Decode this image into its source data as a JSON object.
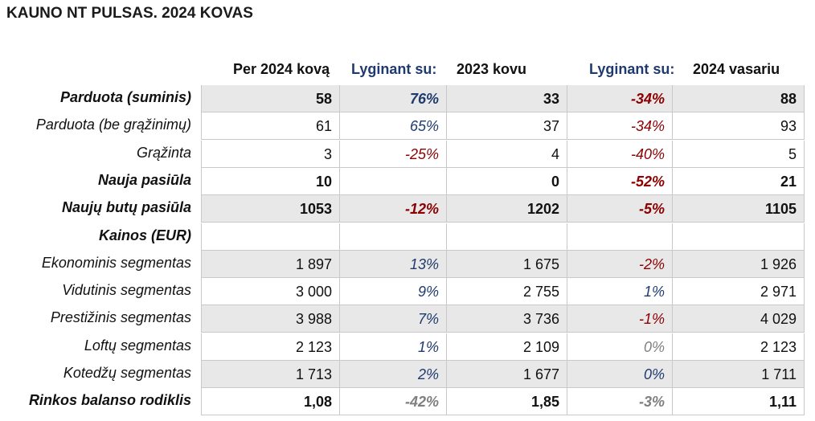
{
  "title": "KAUNO NT PULSAS. 2024 KOVAS",
  "headers": {
    "col1": "Per 2024 kovą",
    "cmp1": "Lyginant su:",
    "col3": "2023 kovu",
    "cmp2": "Lyginant su:",
    "col5": "2024 vasariu"
  },
  "colors": {
    "positive": "#1f3a6e",
    "negative": "#8b0000",
    "neutral": "#7f7f7f",
    "shade": "#e8e8e8"
  },
  "rows": [
    {
      "label": "Parduota (suminis)",
      "bold": true,
      "shade": true,
      "v1": "58",
      "p1": "76%",
      "p1s": "pos",
      "v3": "33",
      "p2": "-34%",
      "p2s": "neg",
      "v5": "88"
    },
    {
      "label": "Parduota (be grąžinimų)",
      "bold": false,
      "shade": false,
      "v1": "61",
      "p1": "65%",
      "p1s": "pos",
      "v3": "37",
      "p2": "-34%",
      "p2s": "neg",
      "v5": "93"
    },
    {
      "label": "Grąžinta",
      "bold": false,
      "shade": false,
      "v1": "3",
      "p1": "-25%",
      "p1s": "neg",
      "v3": "4",
      "p2": "-40%",
      "p2s": "neg",
      "v5": "5"
    },
    {
      "label": "Nauja pasiūla",
      "bold": true,
      "shade": false,
      "v1": "10",
      "p1": "",
      "p1s": "pos",
      "v3": "0",
      "p2": "-52%",
      "p2s": "neg",
      "v5": "21"
    },
    {
      "label": "Naujų butų pasiūla",
      "bold": true,
      "shade": true,
      "v1": "1053",
      "p1": "-12%",
      "p1s": "neg",
      "v3": "1202",
      "p2": "-5%",
      "p2s": "neg",
      "v5": "1105"
    },
    {
      "label": "Kainos (EUR)",
      "bold": true,
      "shade": false,
      "v1": "",
      "p1": "",
      "p1s": "pos",
      "v3": "",
      "p2": "",
      "p2s": "neg",
      "v5": ""
    },
    {
      "label": "Ekonominis segmentas",
      "bold": false,
      "shade": true,
      "v1": "1 897",
      "p1": "13%",
      "p1s": "pos",
      "v3": "1 675",
      "p2": "-2%",
      "p2s": "neg",
      "v5": "1 926"
    },
    {
      "label": "Vidutinis segmentas",
      "bold": false,
      "shade": false,
      "v1": "3 000",
      "p1": "9%",
      "p1s": "pos",
      "v3": "2 755",
      "p2": "1%",
      "p2s": "pos",
      "v5": "2 971"
    },
    {
      "label": "Prestižinis segmentas",
      "bold": false,
      "shade": true,
      "v1": "3 988",
      "p1": "7%",
      "p1s": "pos",
      "v3": "3 736",
      "p2": "-1%",
      "p2s": "neg",
      "v5": "4 029"
    },
    {
      "label": "Loftų segmentas",
      "bold": false,
      "shade": false,
      "v1": "2 123",
      "p1": "1%",
      "p1s": "pos",
      "v3": "2 109",
      "p2": "0%",
      "p2s": "grey",
      "v5": "2 123"
    },
    {
      "label": "Kotedžų segmentas",
      "bold": false,
      "shade": true,
      "v1": "1 713",
      "p1": "2%",
      "p1s": "pos",
      "v3": "1 677",
      "p2": "0%",
      "p2s": "pos",
      "v5": "1 711"
    },
    {
      "label": "Rinkos balanso rodiklis",
      "bold": true,
      "shade": false,
      "v1": "1,08",
      "p1": "-42%",
      "p1s": "grey",
      "v3": "1,85",
      "p2": "-3%",
      "p2s": "grey",
      "v5": "1,11"
    }
  ]
}
